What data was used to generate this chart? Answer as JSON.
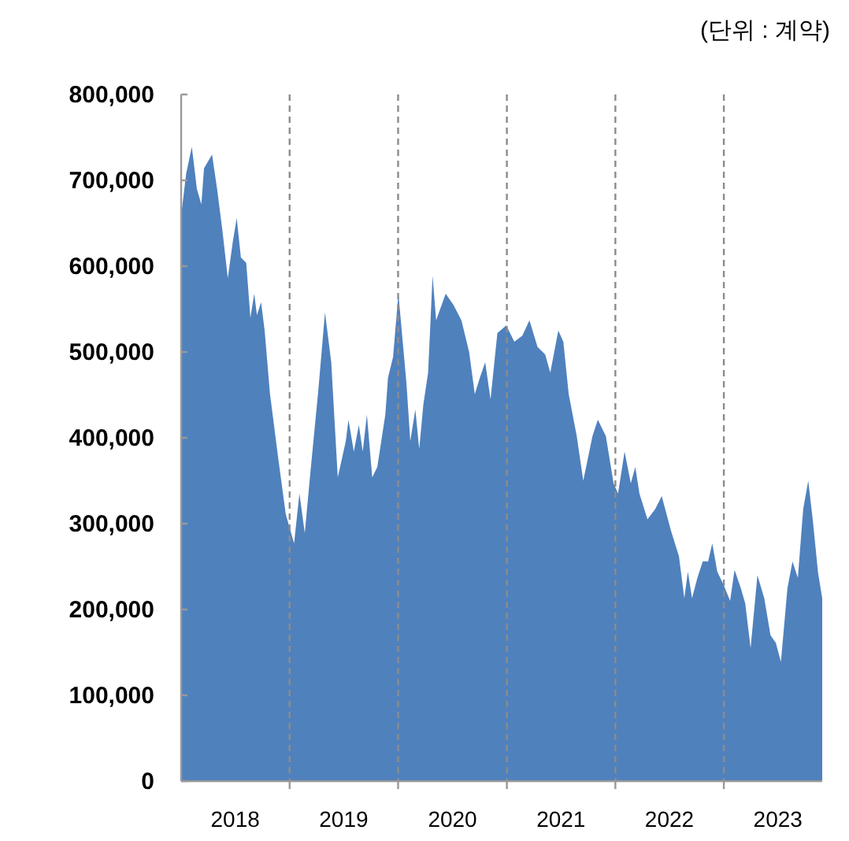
{
  "chart_data": {
    "type": "area",
    "annotations": [
      "(단위 : 계약)"
    ],
    "x": [
      "2018-01-01",
      "2018-01-18",
      "2018-02-06",
      "2018-02-23",
      "2018-03-10",
      "2018-03-19",
      "2018-04-15",
      "2018-05-02",
      "2018-05-20",
      "2018-06-07",
      "2018-06-24",
      "2018-07-07",
      "2018-07-21",
      "2018-08-08",
      "2018-08-22",
      "2018-09-04",
      "2018-09-13",
      "2018-09-27",
      "2018-10-09",
      "2018-10-27",
      "2018-11-23",
      "2018-12-19",
      "2019-01-16",
      "2019-02-03",
      "2019-02-21",
      "2019-03-12",
      "2019-04-08",
      "2019-04-30",
      "2019-05-21",
      "2019-06-12",
      "2019-07-09",
      "2019-07-18",
      "2019-08-05",
      "2019-08-22",
      "2019-09-04",
      "2019-09-18",
      "2019-10-06",
      "2019-10-23",
      "2019-11-19",
      "2019-11-28",
      "2019-12-15",
      "2020-01-02",
      "2020-01-29",
      "2020-02-11",
      "2020-02-28",
      "2020-03-12",
      "2020-03-26",
      "2020-04-11",
      "2020-04-26",
      "2020-05-08",
      "2020-06-09",
      "2020-07-05",
      "2020-08-01",
      "2020-08-27",
      "2020-09-15",
      "2020-10-02",
      "2020-10-20",
      "2020-11-07",
      "2020-11-30",
      "2020-12-30",
      "2021-01-26",
      "2021-02-22",
      "2021-03-18",
      "2021-04-14",
      "2021-05-10",
      "2021-05-27",
      "2021-06-23",
      "2021-07-10",
      "2021-07-28",
      "2021-08-24",
      "2021-09-15",
      "2021-10-16",
      "2021-11-03",
      "2021-11-30",
      "2021-12-26",
      "2022-01-10",
      "2022-02-01",
      "2022-02-22",
      "2022-03-09",
      "2022-03-23",
      "2022-04-19",
      "2022-05-15",
      "2022-06-06",
      "2022-07-07",
      "2022-08-03",
      "2022-08-21",
      "2022-09-02",
      "2022-09-16",
      "2022-10-04",
      "2022-10-22",
      "2022-11-09",
      "2022-11-23",
      "2022-12-10",
      "2023-01-01",
      "2023-01-22",
      "2023-02-06",
      "2023-02-27",
      "2023-03-14",
      "2023-04-01",
      "2023-04-24",
      "2023-05-17",
      "2023-06-07",
      "2023-06-25",
      "2023-07-12",
      "2023-08-03",
      "2023-08-20",
      "2023-09-07",
      "2023-09-25",
      "2023-10-12",
      "2023-10-27",
      "2023-11-14",
      "2023-11-28"
    ],
    "series": [
      {
        "color": "#4f81bd",
        "values": [
          659000,
          708000,
          739000,
          690000,
          672000,
          714000,
          730000,
          690000,
          641000,
          586000,
          629000,
          656000,
          610000,
          604000,
          540000,
          568000,
          543000,
          558000,
          525000,
          451000,
          378000,
          311000,
          277000,
          335000,
          289000,
          360000,
          457000,
          546000,
          488000,
          354000,
          396000,
          421000,
          384000,
          415000,
          384000,
          427000,
          354000,
          366000,
          427000,
          470000,
          494000,
          568000,
          464000,
          396000,
          433000,
          387000,
          439000,
          476000,
          589000,
          537000,
          568000,
          555000,
          537000,
          500000,
          451000,
          470000,
          488000,
          445000,
          522000,
          531000,
          512000,
          519000,
          537000,
          506000,
          497000,
          476000,
          525000,
          512000,
          451000,
          402000,
          350000,
          402000,
          421000,
          402000,
          347000,
          335000,
          384000,
          347000,
          366000,
          335000,
          305000,
          317000,
          332000,
          292000,
          262000,
          213000,
          244000,
          213000,
          237000,
          256000,
          256000,
          277000,
          244000,
          228000,
          210000,
          246000,
          225000,
          207000,
          155000,
          240000,
          213000,
          170000,
          161000,
          139000,
          225000,
          256000,
          237000,
          317000,
          350000,
          305000,
          243000,
          213000
        ]
      }
    ],
    "xlim": [
      "2018-01-01",
      "2023-11-28"
    ],
    "xticks": [
      {
        "value": "2018-07-02",
        "label": "2018"
      },
      {
        "value": "2019-01-01",
        "label": null
      },
      {
        "value": "2019-07-02",
        "label": "2019"
      },
      {
        "value": "2020-01-01",
        "label": null
      },
      {
        "value": "2020-07-02",
        "label": "2020"
      },
      {
        "value": "2021-01-01",
        "label": null
      },
      {
        "value": "2021-07-02",
        "label": "2021"
      },
      {
        "value": "2022-01-01",
        "label": null
      },
      {
        "value": "2022-07-02",
        "label": "2022"
      },
      {
        "value": "2023-01-01",
        "label": null
      },
      {
        "value": "2023-07-02",
        "label": "2023"
      }
    ],
    "ylim": [
      0,
      800000
    ],
    "yticks": [
      0,
      {
        "value": 100000,
        "label": "100,000"
      },
      {
        "value": 200000,
        "label": "200,000"
      },
      {
        "value": 300000,
        "label": "300,000"
      },
      {
        "value": 400000,
        "label": "400,000"
      },
      {
        "value": 500000,
        "label": "500,000"
      },
      {
        "value": 600000,
        "label": "600,000"
      },
      {
        "value": 700000,
        "label": "700,000"
      },
      {
        "value": 800000,
        "label": "800,000"
      }
    ],
    "ref_lines": [
      {
        "axis": "x",
        "value": "2019-01-01",
        "color": "#8c8c8c",
        "line_style": "dashed"
      },
      {
        "axis": "x",
        "value": "2020-01-01",
        "color": "#8c8c8c",
        "line_style": "dashed"
      },
      {
        "axis": "x",
        "value": "2021-01-01",
        "color": "#8c8c8c",
        "line_style": "dashed"
      },
      {
        "axis": "x",
        "value": "2022-01-01",
        "color": "#8c8c8c",
        "line_style": "dashed"
      },
      {
        "axis": "x",
        "value": "2023-01-01",
        "color": "#8c8c8c",
        "line_style": "dashed"
      }
    ],
    "grid": false
  }
}
